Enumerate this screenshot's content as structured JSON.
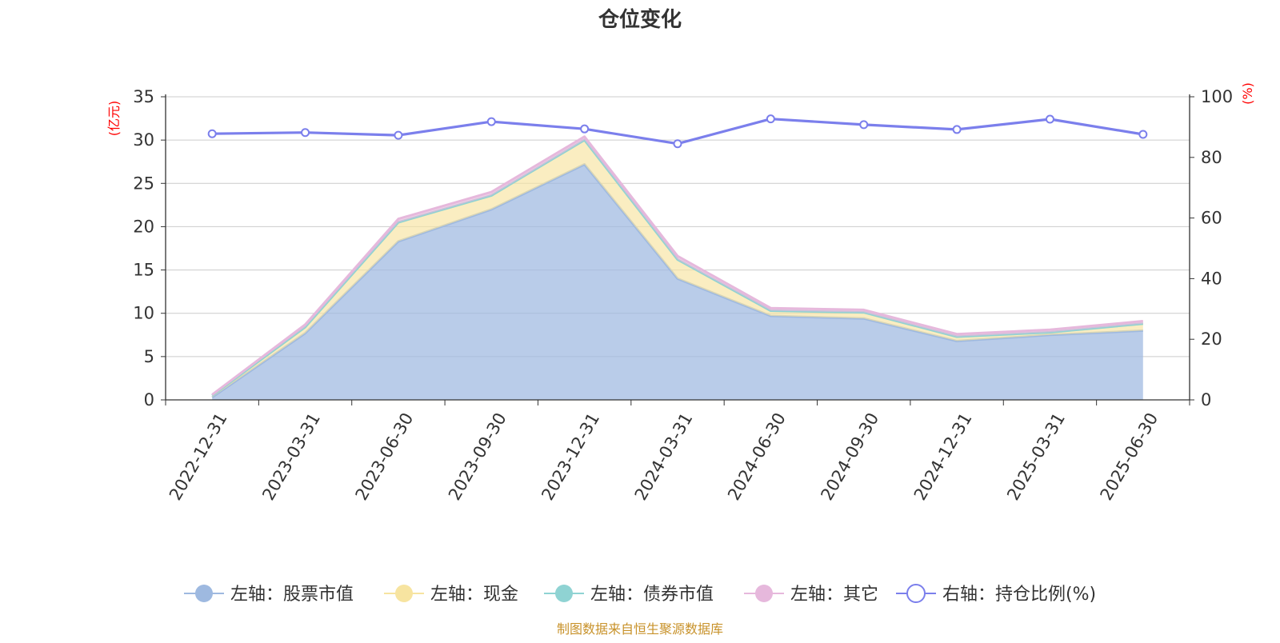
{
  "chart_data": {
    "type": "area",
    "title": "仓位变化",
    "left_axis_unit": "(亿元)",
    "right_axis_unit": "(%)",
    "categories": [
      "2022-12-31",
      "2023-03-31",
      "2023-06-30",
      "2023-09-30",
      "2023-12-31",
      "2024-03-31",
      "2024-06-30",
      "2024-09-30",
      "2024-12-31",
      "2025-03-31",
      "2025-06-30"
    ],
    "left_axis": {
      "min": 0,
      "max": 35,
      "ticks": [
        0,
        5,
        10,
        15,
        20,
        25,
        30,
        35
      ]
    },
    "right_axis": {
      "min": 0,
      "max": 100,
      "ticks": [
        0,
        20,
        40,
        60,
        80,
        100
      ]
    },
    "series": [
      {
        "name": "左轴：股票市值",
        "axis": "left",
        "kind": "stacked-area",
        "color": "#9eb9e0",
        "values": [
          0.3,
          7.7,
          18.3,
          22.0,
          27.2,
          14.0,
          9.7,
          9.4,
          6.8,
          7.5,
          8.0
        ]
      },
      {
        "name": "左轴：现金",
        "axis": "left",
        "kind": "stacked-area",
        "color": "#f7e4a0",
        "values": [
          0.2,
          0.7,
          2.2,
          1.6,
          2.8,
          2.2,
          0.6,
          0.7,
          0.5,
          0.3,
          0.8
        ]
      },
      {
        "name": "左轴：债券市值",
        "axis": "left",
        "kind": "stacked-area",
        "color": "#8fd3d3",
        "values": [
          0,
          0,
          0,
          0,
          0,
          0,
          0,
          0,
          0,
          0,
          0
        ]
      },
      {
        "name": "左轴：其它",
        "axis": "left",
        "kind": "stacked-area",
        "color": "#e6b8dc",
        "values": [
          0.1,
          0.3,
          0.4,
          0.4,
          0.4,
          0.4,
          0.3,
          0.3,
          0.3,
          0.3,
          0.3
        ]
      },
      {
        "name": "右轴：持仓比例(%)",
        "axis": "right",
        "kind": "line",
        "color": "#7b7fec",
        "values": [
          87.8,
          88.2,
          87.3,
          91.8,
          89.4,
          84.5,
          92.7,
          90.8,
          89.2,
          92.6,
          87.6
        ]
      }
    ],
    "grid": true,
    "legend_position": "bottom"
  },
  "footer": {
    "source": "制图数据来自恒生聚源数据库"
  },
  "colors": {
    "title": "#333333",
    "axis_unit": "#ff0000",
    "axis": "#333333",
    "grid": "#cccccc",
    "source": "#c8922a"
  }
}
